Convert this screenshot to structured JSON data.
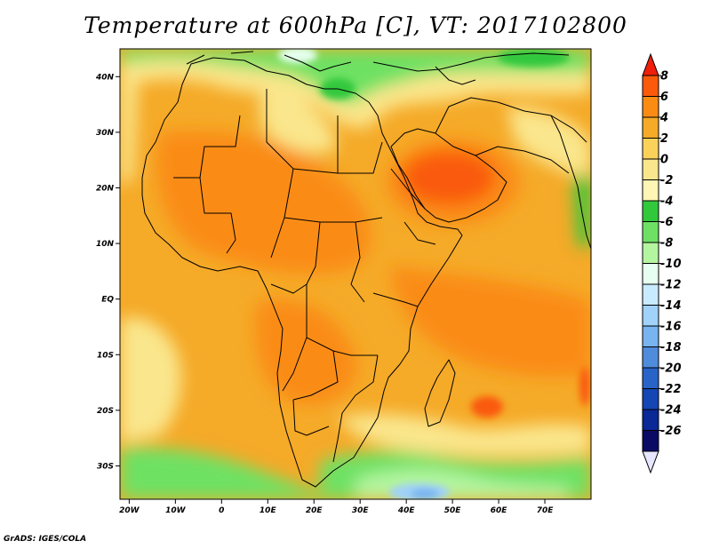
{
  "title": "Temperature at 600hPa [C], VT: 2017102800",
  "footer": "GrADS: IGES/COLA",
  "map": {
    "lon_range": [
      -22,
      80
    ],
    "lat_range": [
      -36,
      45
    ],
    "lon_ticks": [
      {
        "value": -20,
        "label": "20W"
      },
      {
        "value": -10,
        "label": "10W"
      },
      {
        "value": 0,
        "label": "0"
      },
      {
        "value": 10,
        "label": "10E"
      },
      {
        "value": 20,
        "label": "20E"
      },
      {
        "value": 30,
        "label": "30E"
      },
      {
        "value": 40,
        "label": "40E"
      },
      {
        "value": 50,
        "label": "50E"
      },
      {
        "value": 60,
        "label": "60E"
      },
      {
        "value": 70,
        "label": "70E"
      }
    ],
    "lat_ticks": [
      {
        "value": 40,
        "label": "40N"
      },
      {
        "value": 30,
        "label": "30N"
      },
      {
        "value": 20,
        "label": "20N"
      },
      {
        "value": 10,
        "label": "10N"
      },
      {
        "value": 0,
        "label": "EQ"
      },
      {
        "value": -10,
        "label": "10S"
      },
      {
        "value": -20,
        "label": "20S"
      },
      {
        "value": -30,
        "label": "30S"
      }
    ]
  },
  "colorbar": {
    "labels": [
      "8",
      "6",
      "4",
      "2",
      "0",
      "-2",
      "-4",
      "-6",
      "-8",
      "-10",
      "-12",
      "-14",
      "-16",
      "-18",
      "-20",
      "-22",
      "-24",
      "-26"
    ],
    "colors": [
      "#f01e0a",
      "#fa5a0a",
      "#fa8c14",
      "#f5aa28",
      "#fad25a",
      "#fae68c",
      "#fff5b4",
      "#32c83c",
      "#6ee164",
      "#b4f5a0",
      "#e6fff0",
      "#c8ebff",
      "#a0d2fa",
      "#78b4f0",
      "#508cdc",
      "#2864c8",
      "#1446b4",
      "#0a2896",
      "#0a0a64",
      "#e6e6ff"
    ]
  }
}
